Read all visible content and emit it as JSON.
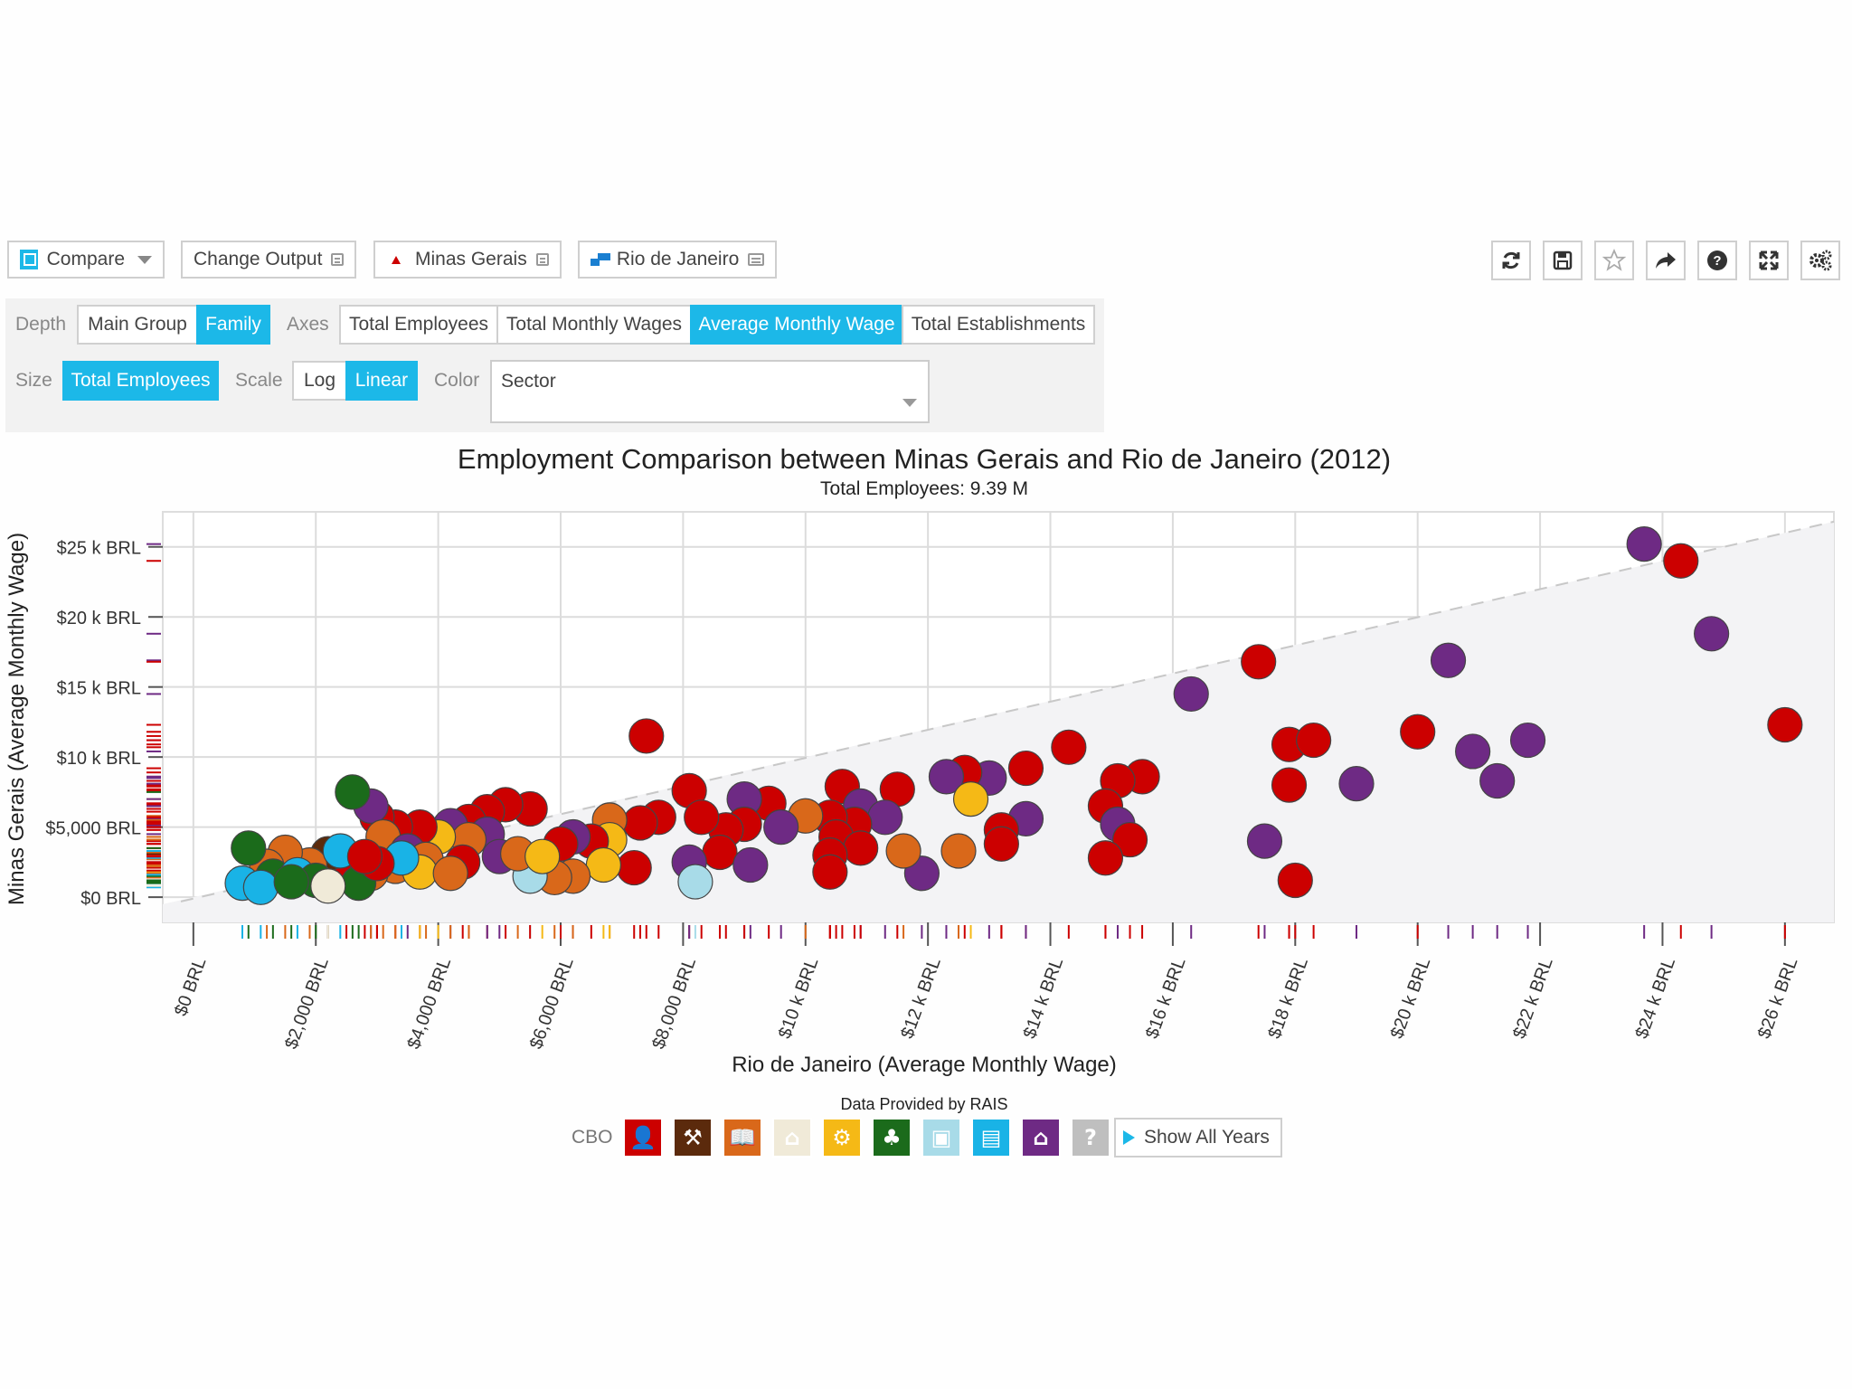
{
  "toolbar": {
    "compare_label": "Compare",
    "change_output_label": "Change Output",
    "location_a": "Minas Gerais",
    "location_b": "Rio de Janeiro",
    "tools": [
      "refresh-icon",
      "save-icon",
      "star-icon",
      "share-icon",
      "help-icon",
      "fullscreen-icon",
      "settings-icon"
    ]
  },
  "controls": {
    "depth_label": "Depth",
    "depth_options": [
      "Main Group",
      "Family"
    ],
    "depth_selected": "Family",
    "axes_label": "Axes",
    "axes_options": [
      "Total Employees",
      "Total Monthly Wages",
      "Average Monthly Wage",
      "Total Establishments"
    ],
    "axes_selected": "Average Monthly Wage",
    "size_label": "Size",
    "size_value": "Total Employees",
    "scale_label": "Scale",
    "scale_options": [
      "Log",
      "Linear"
    ],
    "scale_selected": "Linear",
    "color_label": "Color",
    "color_value": "Sector"
  },
  "chart_data": {
    "type": "scatter",
    "title": "Employment Comparison between Minas Gerais and Rio de Janeiro (2012)",
    "subtitle": "Total Employees: 9.39 M",
    "xlabel": "Rio de Janeiro (Average Monthly Wage)",
    "ylabel": "Minas Gerais (Average Monthly Wage)",
    "xlim": [
      -500,
      26800
    ],
    "ylim": [
      -1800,
      27500
    ],
    "x_ticks": [
      0,
      2000,
      4000,
      6000,
      8000,
      10000,
      12000,
      14000,
      16000,
      18000,
      20000,
      22000,
      24000,
      26000
    ],
    "x_tick_labels": [
      "$0 BRL",
      "$2,000 BRL",
      "$4,000 BRL",
      "$6,000 BRL",
      "$8,000 BRL",
      "$10 k BRL",
      "$12 k BRL",
      "$14 k BRL",
      "$16 k BRL",
      "$18 k BRL",
      "$20 k BRL",
      "$22 k BRL",
      "$24 k BRL",
      "$26 k BRL"
    ],
    "y_ticks": [
      0,
      5000,
      10000,
      15000,
      20000,
      25000
    ],
    "y_tick_labels": [
      "$0 BRL",
      "$5,000 BRL",
      "$10 k BRL",
      "$15 k BRL",
      "$20 k BRL",
      "$25 k BRL"
    ],
    "diagonal_reference": true,
    "source_note": "Data Provided by RAIS",
    "sector_colors": {
      "managers": "#cc0000",
      "technicians": "#5b2a0c",
      "professionals": "#d9681a",
      "services": "#f0ead8",
      "agriculture": "#f5b916",
      "production": "#1b6b1b",
      "maintenance": "#a8dbe8",
      "admin": "#19b3e6",
      "military": "#6e2a84",
      "unknown": "#bfbfbf"
    },
    "points": [
      {
        "x": 23700,
        "y": 25200,
        "s": "military"
      },
      {
        "x": 24300,
        "y": 24000,
        "s": "managers"
      },
      {
        "x": 24800,
        "y": 18800,
        "s": "military"
      },
      {
        "x": 26000,
        "y": 12300,
        "s": "managers"
      },
      {
        "x": 20000,
        "y": 11800,
        "s": "managers"
      },
      {
        "x": 20500,
        "y": 16900,
        "s": "military"
      },
      {
        "x": 20900,
        "y": 10400,
        "s": "military"
      },
      {
        "x": 21300,
        "y": 8300,
        "s": "military"
      },
      {
        "x": 21800,
        "y": 11200,
        "s": "military"
      },
      {
        "x": 17400,
        "y": 16800,
        "s": "managers"
      },
      {
        "x": 17900,
        "y": 10900,
        "s": "managers"
      },
      {
        "x": 18300,
        "y": 11200,
        "s": "managers"
      },
      {
        "x": 17900,
        "y": 8000,
        "s": "managers"
      },
      {
        "x": 19000,
        "y": 8100,
        "s": "military"
      },
      {
        "x": 17500,
        "y": 4000,
        "s": "military"
      },
      {
        "x": 18000,
        "y": 1200,
        "s": "managers"
      },
      {
        "x": 16300,
        "y": 14500,
        "s": "military"
      },
      {
        "x": 15500,
        "y": 8600,
        "s": "managers"
      },
      {
        "x": 15100,
        "y": 8300,
        "s": "managers"
      },
      {
        "x": 14300,
        "y": 10700,
        "s": "managers"
      },
      {
        "x": 14900,
        "y": 6500,
        "s": "managers"
      },
      {
        "x": 15100,
        "y": 5200,
        "s": "military"
      },
      {
        "x": 15300,
        "y": 4100,
        "s": "managers"
      },
      {
        "x": 14900,
        "y": 2800,
        "s": "managers"
      },
      {
        "x": 13600,
        "y": 9200,
        "s": "managers"
      },
      {
        "x": 13000,
        "y": 8500,
        "s": "military"
      },
      {
        "x": 12600,
        "y": 8900,
        "s": "managers"
      },
      {
        "x": 12300,
        "y": 8600,
        "s": "military"
      },
      {
        "x": 12700,
        "y": 7000,
        "s": "agriculture"
      },
      {
        "x": 13600,
        "y": 5600,
        "s": "military"
      },
      {
        "x": 13200,
        "y": 4800,
        "s": "managers"
      },
      {
        "x": 13200,
        "y": 3800,
        "s": "managers"
      },
      {
        "x": 11900,
        "y": 1700,
        "s": "military"
      },
      {
        "x": 12500,
        "y": 3300,
        "s": "professionals"
      },
      {
        "x": 11600,
        "y": 3300,
        "s": "professionals"
      },
      {
        "x": 11500,
        "y": 7700,
        "s": "managers"
      },
      {
        "x": 10600,
        "y": 7900,
        "s": "managers"
      },
      {
        "x": 10900,
        "y": 6500,
        "s": "military"
      },
      {
        "x": 11300,
        "y": 5700,
        "s": "military"
      },
      {
        "x": 10800,
        "y": 5200,
        "s": "managers"
      },
      {
        "x": 10400,
        "y": 5700,
        "s": "managers"
      },
      {
        "x": 10500,
        "y": 4300,
        "s": "managers"
      },
      {
        "x": 10900,
        "y": 3500,
        "s": "managers"
      },
      {
        "x": 10400,
        "y": 3000,
        "s": "managers"
      },
      {
        "x": 10400,
        "y": 1800,
        "s": "managers"
      },
      {
        "x": 10000,
        "y": 5800,
        "s": "professionals"
      },
      {
        "x": 9400,
        "y": 6700,
        "s": "managers"
      },
      {
        "x": 9000,
        "y": 7000,
        "s": "military"
      },
      {
        "x": 9600,
        "y": 5000,
        "s": "military"
      },
      {
        "x": 9000,
        "y": 5200,
        "s": "managers"
      },
      {
        "x": 8700,
        "y": 4800,
        "s": "managers"
      },
      {
        "x": 8100,
        "y": 7600,
        "s": "managers"
      },
      {
        "x": 8600,
        "y": 3200,
        "s": "managers"
      },
      {
        "x": 8300,
        "y": 5700,
        "s": "managers"
      },
      {
        "x": 8100,
        "y": 2500,
        "s": "military"
      },
      {
        "x": 9100,
        "y": 2300,
        "s": "military"
      },
      {
        "x": 8200,
        "y": 1100,
        "s": "maintenance"
      },
      {
        "x": 7400,
        "y": 11500,
        "s": "managers"
      },
      {
        "x": 7600,
        "y": 5700,
        "s": "managers"
      },
      {
        "x": 7300,
        "y": 5300,
        "s": "managers"
      },
      {
        "x": 7200,
        "y": 2100,
        "s": "managers"
      },
      {
        "x": 6800,
        "y": 5500,
        "s": "professionals"
      },
      {
        "x": 6800,
        "y": 4100,
        "s": "agriculture"
      },
      {
        "x": 6500,
        "y": 4000,
        "s": "managers"
      },
      {
        "x": 6200,
        "y": 4300,
        "s": "military"
      },
      {
        "x": 6000,
        "y": 3800,
        "s": "managers"
      },
      {
        "x": 6700,
        "y": 2300,
        "s": "agriculture"
      },
      {
        "x": 6200,
        "y": 1500,
        "s": "professionals"
      },
      {
        "x": 5900,
        "y": 1400,
        "s": "professionals"
      },
      {
        "x": 5500,
        "y": 1500,
        "s": "maintenance"
      },
      {
        "x": 5500,
        "y": 6300,
        "s": "managers"
      },
      {
        "x": 5100,
        "y": 6600,
        "s": "managers"
      },
      {
        "x": 4800,
        "y": 6100,
        "s": "managers"
      },
      {
        "x": 4500,
        "y": 5400,
        "s": "managers"
      },
      {
        "x": 4200,
        "y": 5100,
        "s": "military"
      },
      {
        "x": 4800,
        "y": 4500,
        "s": "military"
      },
      {
        "x": 4500,
        "y": 4100,
        "s": "professionals"
      },
      {
        "x": 4000,
        "y": 4300,
        "s": "agriculture"
      },
      {
        "x": 3700,
        "y": 5000,
        "s": "managers"
      },
      {
        "x": 3300,
        "y": 5000,
        "s": "managers"
      },
      {
        "x": 3000,
        "y": 5700,
        "s": "managers"
      },
      {
        "x": 2900,
        "y": 6500,
        "s": "military"
      },
      {
        "x": 2600,
        "y": 7500,
        "s": "production"
      },
      {
        "x": 3100,
        "y": 4300,
        "s": "professionals"
      },
      {
        "x": 3500,
        "y": 3300,
        "s": "military"
      },
      {
        "x": 3800,
        "y": 2700,
        "s": "professionals"
      },
      {
        "x": 4400,
        "y": 2500,
        "s": "managers"
      },
      {
        "x": 5000,
        "y": 2900,
        "s": "military"
      },
      {
        "x": 5300,
        "y": 3100,
        "s": "professionals"
      },
      {
        "x": 5700,
        "y": 2900,
        "s": "agriculture"
      },
      {
        "x": 3300,
        "y": 2200,
        "s": "professionals"
      },
      {
        "x": 3700,
        "y": 1800,
        "s": "agriculture"
      },
      {
        "x": 4200,
        "y": 1700,
        "s": "professionals"
      },
      {
        "x": 2900,
        "y": 1700,
        "s": "professionals"
      },
      {
        "x": 2500,
        "y": 1900,
        "s": "managers"
      },
      {
        "x": 2200,
        "y": 3100,
        "s": "technicians"
      },
      {
        "x": 1900,
        "y": 2300,
        "s": "professionals"
      },
      {
        "x": 1500,
        "y": 3200,
        "s": "professionals"
      },
      {
        "x": 1200,
        "y": 2200,
        "s": "professionals"
      },
      {
        "x": 900,
        "y": 3500,
        "s": "production"
      },
      {
        "x": 1300,
        "y": 1500,
        "s": "production"
      },
      {
        "x": 1700,
        "y": 1600,
        "s": "admin"
      },
      {
        "x": 800,
        "y": 1000,
        "s": "admin"
      },
      {
        "x": 1100,
        "y": 700,
        "s": "admin"
      },
      {
        "x": 2000,
        "y": 1200,
        "s": "production"
      },
      {
        "x": 2700,
        "y": 1000,
        "s": "production"
      },
      {
        "x": 2400,
        "y": 3300,
        "s": "admin"
      },
      {
        "x": 3400,
        "y": 2800,
        "s": "admin"
      },
      {
        "x": 3000,
        "y": 2400,
        "s": "managers"
      },
      {
        "x": 2800,
        "y": 2900,
        "s": "managers"
      },
      {
        "x": 1600,
        "y": 1100,
        "s": "production"
      },
      {
        "x": 2200,
        "y": 800,
        "s": "services"
      }
    ]
  },
  "legend": {
    "label": "CBO",
    "sectors": [
      {
        "name": "managers",
        "icon": "person-icon",
        "color": "#cc0000"
      },
      {
        "name": "technicians",
        "icon": "wrench-icon",
        "color": "#5b2a0c"
      },
      {
        "name": "professionals",
        "icon": "book-icon",
        "color": "#d9681a"
      },
      {
        "name": "services",
        "icon": "cake-icon",
        "color": "#f0ead8"
      },
      {
        "name": "agriculture",
        "icon": "gears-icon",
        "color": "#f5b916"
      },
      {
        "name": "production",
        "icon": "trees-icon",
        "color": "#1b6b1b"
      },
      {
        "name": "maintenance",
        "icon": "box-icon",
        "color": "#a8dbe8"
      },
      {
        "name": "admin",
        "icon": "shop-icon",
        "color": "#19b3e6"
      },
      {
        "name": "military",
        "icon": "building-icon",
        "color": "#6e2a84"
      },
      {
        "name": "unknown",
        "icon": "question-icon",
        "color": "#bfbfbf"
      }
    ],
    "show_all_years_label": "Show All Years"
  }
}
